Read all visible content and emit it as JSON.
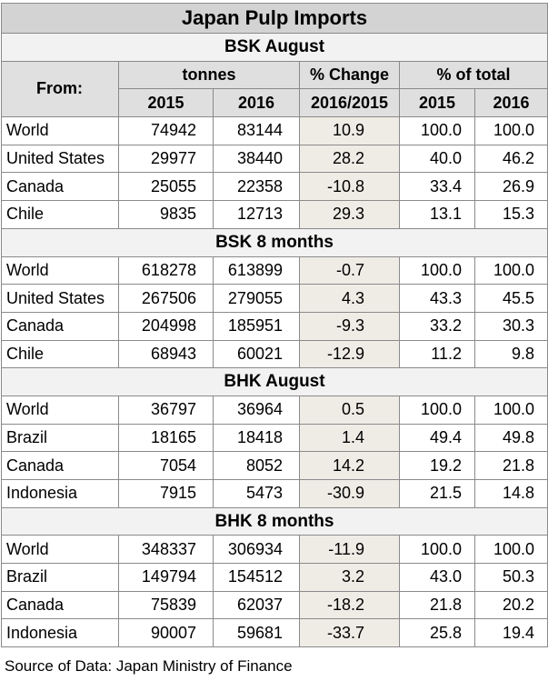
{
  "chart_data": {
    "type": "table",
    "title": "Japan Pulp Imports",
    "header": {
      "from": "From:",
      "tonnes": "tonnes",
      "pct_change": "% Change",
      "pct_total": "% of total",
      "y2015": "2015",
      "y2016": "2016",
      "change_period": "2016/2015"
    },
    "sections": [
      {
        "name": "BSK August",
        "rows": [
          {
            "country": "World",
            "t2015": "74942",
            "t2016": "83144",
            "change": "10.9",
            "p2015": "100.0",
            "p2016": "100.0"
          },
          {
            "country": "United States",
            "t2015": "29977",
            "t2016": "38440",
            "change": "28.2",
            "p2015": "40.0",
            "p2016": "46.2"
          },
          {
            "country": "Canada",
            "t2015": "25055",
            "t2016": "22358",
            "change": "-10.8",
            "p2015": "33.4",
            "p2016": "26.9"
          },
          {
            "country": "Chile",
            "t2015": "9835",
            "t2016": "12713",
            "change": "29.3",
            "p2015": "13.1",
            "p2016": "15.3"
          }
        ]
      },
      {
        "name": "BSK 8 months",
        "rows": [
          {
            "country": "World",
            "t2015": "618278",
            "t2016": "613899",
            "change": "-0.7",
            "p2015": "100.0",
            "p2016": "100.0"
          },
          {
            "country": "United States",
            "t2015": "267506",
            "t2016": "279055",
            "change": "4.3",
            "p2015": "43.3",
            "p2016": "45.5"
          },
          {
            "country": "Canada",
            "t2015": "204998",
            "t2016": "185951",
            "change": "-9.3",
            "p2015": "33.2",
            "p2016": "30.3"
          },
          {
            "country": "Chile",
            "t2015": "68943",
            "t2016": "60021",
            "change": "-12.9",
            "p2015": "11.2",
            "p2016": "9.8"
          }
        ]
      },
      {
        "name": "BHK August",
        "rows": [
          {
            "country": "World",
            "t2015": "36797",
            "t2016": "36964",
            "change": "0.5",
            "p2015": "100.0",
            "p2016": "100.0"
          },
          {
            "country": "Brazil",
            "t2015": "18165",
            "t2016": "18418",
            "change": "1.4",
            "p2015": "49.4",
            "p2016": "49.8"
          },
          {
            "country": "Canada",
            "t2015": "7054",
            "t2016": "8052",
            "change": "14.2",
            "p2015": "19.2",
            "p2016": "21.8"
          },
          {
            "country": "Indonesia",
            "t2015": "7915",
            "t2016": "5473",
            "change": "-30.9",
            "p2015": "21.5",
            "p2016": "14.8"
          }
        ]
      },
      {
        "name": "BHK 8 months",
        "rows": [
          {
            "country": "World",
            "t2015": "348337",
            "t2016": "306934",
            "change": "-11.9",
            "p2015": "100.0",
            "p2016": "100.0"
          },
          {
            "country": "Brazil",
            "t2015": "149794",
            "t2016": "154512",
            "change": "3.2",
            "p2015": "43.0",
            "p2016": "50.3"
          },
          {
            "country": "Canada",
            "t2015": "75839",
            "t2016": "62037",
            "change": "-18.2",
            "p2015": "21.8",
            "p2016": "20.2"
          },
          {
            "country": "Indonesia",
            "t2015": "90007",
            "t2016": "59681",
            "change": "-33.7",
            "p2015": "25.8",
            "p2016": "19.4"
          }
        ]
      }
    ],
    "source": "Source of Data: Japan Ministry of Finance",
    "colors": {
      "title_bg": "#d3d3d3",
      "header_bg": "#dfdfdf",
      "change_bg": "#efece6",
      "border": "#8a8a8a"
    }
  }
}
